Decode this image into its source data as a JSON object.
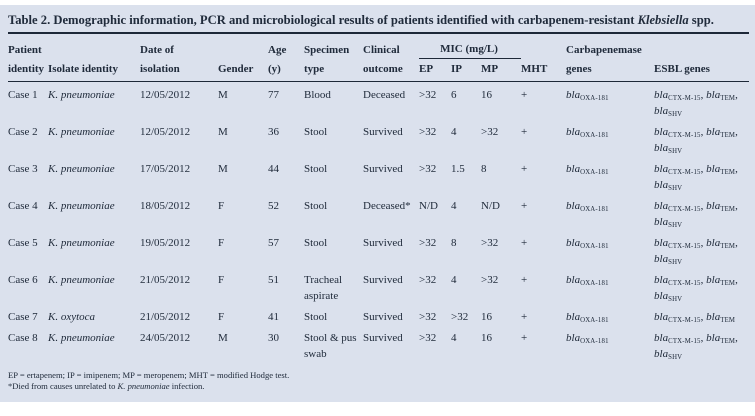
{
  "title": {
    "text_before_italic": "Table 2. Demographic information, PCR and microbiological results of patients identified with carbapenem-resistant ",
    "italic": "Klebsiella",
    "text_after_italic": " spp."
  },
  "columns": {
    "patient_line1": "Patient",
    "patient_line2": "identity",
    "isolate": "Isolate identity",
    "date_line1": "Date of",
    "date_line2": "isolation",
    "gender": "Gender",
    "age_line1": "Age",
    "age_line2": "(y)",
    "specimen_line1": "Specimen",
    "specimen_line2": "type",
    "clinical_line1": "Clinical",
    "clinical_line2": "outcome",
    "mic_group": "MIC (mg/L)",
    "ep": "EP",
    "ip": "IP",
    "mp": "MP",
    "mht": "MHT",
    "carb_line1": "Carbapenemase",
    "carb_line2": "genes",
    "esbl": "ESBL genes"
  },
  "rows": [
    {
      "case": "Case 1",
      "isolate": "K. pneumoniae",
      "date": "12/05/2012",
      "gender": "M",
      "age": "77",
      "specimen": "Blood",
      "outcome": "Deceased",
      "ep": ">32",
      "ip": "6",
      "mp": "16",
      "mht": "+",
      "carb": [
        "bla_{OXA-181}"
      ],
      "esbl": [
        "bla_{CTX-M-15}",
        "bla_{TEM}",
        "bla_{SHV}"
      ]
    },
    {
      "case": "Case 2",
      "isolate": "K. pneumoniae",
      "date": "12/05/2012",
      "gender": "M",
      "age": "36",
      "specimen": "Stool",
      "outcome": "Survived",
      "ep": ">32",
      "ip": "4",
      "mp": ">32",
      "mht": "+",
      "carb": [
        "bla_{OXA-181}"
      ],
      "esbl": [
        "bla_{CTX-M-15}",
        "bla_{TEM}",
        "bla_{SHV}"
      ]
    },
    {
      "case": "Case 3",
      "isolate": "K. pneumoniae",
      "date": "17/05/2012",
      "gender": "M",
      "age": "44",
      "specimen": "Stool",
      "outcome": "Survived",
      "ep": ">32",
      "ip": "1.5",
      "mp": "8",
      "mht": "+",
      "carb": [
        "bla_{OXA-181}"
      ],
      "esbl": [
        "bla_{CTX-M-15}",
        "bla_{TEM}",
        "bla_{SHV}"
      ]
    },
    {
      "case": "Case 4",
      "isolate": "K. pneumoniae",
      "date": "18/05/2012",
      "gender": "F",
      "age": "52",
      "specimen": "Stool",
      "outcome": "Deceased*",
      "ep": "N/D",
      "ip": "4",
      "mp": "N/D",
      "mht": "+",
      "carb": [
        "bla_{OXA-181}"
      ],
      "esbl": [
        "bla_{CTX-M-15}",
        "bla_{TEM}",
        "bla_{SHV}"
      ]
    },
    {
      "case": "Case 5",
      "isolate": "K. pneumoniae",
      "date": "19/05/2012",
      "gender": "F",
      "age": "57",
      "specimen": "Stool",
      "outcome": "Survived",
      "ep": ">32",
      "ip": "8",
      "mp": ">32",
      "mht": "+",
      "carb": [
        "bla_{OXA-181}"
      ],
      "esbl": [
        "bla_{CTX-M-15}",
        "bla_{TEM}",
        "bla_{SHV}"
      ]
    },
    {
      "case": "Case 6",
      "isolate": "K. pneumoniae",
      "date": "21/05/2012",
      "gender": "F",
      "age": "51",
      "specimen": "Tracheal aspirate",
      "outcome": "Survived",
      "ep": ">32",
      "ip": "4",
      "mp": ">32",
      "mht": "+",
      "carb": [
        "bla_{OXA-181}"
      ],
      "esbl": [
        "bla_{CTX-M-15}",
        "bla_{TEM}",
        "bla_{SHV}"
      ]
    },
    {
      "case": "Case 7",
      "isolate": "K. oxytoca",
      "date": "21/05/2012",
      "gender": "F",
      "age": "41",
      "specimen": "Stool",
      "outcome": "Survived",
      "ep": ">32",
      "ip": ">32",
      "mp": "16",
      "mht": "+",
      "carb": [
        "bla_{OXA-181}"
      ],
      "esbl": [
        "bla_{CTX-M-15}",
        "bla_{TEM}"
      ],
      "single_line": true
    },
    {
      "case": "Case 8",
      "isolate": "K. pneumoniae",
      "date": "24/05/2012",
      "gender": "M",
      "age": "30",
      "specimen": "Stool & pus swab",
      "outcome": "Survived",
      "ep": ">32",
      "ip": "4",
      "mp": "16",
      "mht": "+",
      "carb": [
        "bla_{OXA-181}"
      ],
      "esbl": [
        "bla_{CTX-M-15}",
        "bla_{TEM}",
        "bla_{SHV}"
      ]
    }
  ],
  "footnotes": {
    "abbreviations": "EP = ertapenem; IP = imipenem; MP = meropenem; MHT = modified Hodge test.",
    "asterisk_before": "*Died from causes unrelated to ",
    "asterisk_italic": "K. pneumoniae",
    "asterisk_after": " infection."
  },
  "colors": {
    "panel_bg": "#dbe1ed",
    "text": "#202b3b",
    "rule": "#1d2838"
  }
}
